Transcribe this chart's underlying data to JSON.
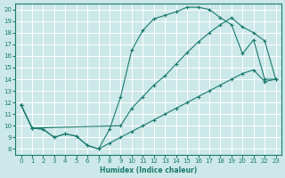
{
  "bg_color": "#cce8e8",
  "line_color": "#1a7a6e",
  "grid_color": "#ffffff",
  "xlabel": "Humidex (Indice chaleur)",
  "xlim": [
    -0.5,
    23.5
  ],
  "ylim": [
    7.5,
    20.5
  ],
  "xticks": [
    0,
    1,
    2,
    3,
    4,
    5,
    6,
    7,
    8,
    9,
    10,
    11,
    12,
    13,
    14,
    15,
    16,
    17,
    18,
    19,
    20,
    21,
    22,
    23
  ],
  "yticks": [
    8,
    9,
    10,
    11,
    12,
    13,
    14,
    15,
    16,
    17,
    18,
    19,
    20
  ],
  "line1_x": [
    0,
    1,
    2,
    3,
    4,
    5,
    6,
    7,
    8,
    9,
    10,
    11,
    12,
    13,
    14,
    15,
    16,
    17,
    18,
    19,
    20,
    21,
    22,
    23
  ],
  "line1_y": [
    11.8,
    9.8,
    9.7,
    9.0,
    9.3,
    9.1,
    8.3,
    8.0,
    9.7,
    12.5,
    16.5,
    18.2,
    19.2,
    19.5,
    19.8,
    20.2,
    20.2,
    20.0,
    19.3,
    18.7,
    16.2,
    17.4,
    14.0,
    14.0
  ],
  "line2_x": [
    0,
    1,
    9,
    10,
    11,
    12,
    13,
    14,
    15,
    16,
    17,
    18,
    19,
    20,
    21,
    22,
    23
  ],
  "line2_y": [
    11.8,
    9.8,
    10.0,
    11.5,
    12.5,
    13.5,
    14.3,
    15.3,
    16.3,
    17.2,
    18.0,
    18.7,
    19.3,
    18.5,
    18.0,
    17.3,
    14.0
  ],
  "line3_x": [
    0,
    1,
    2,
    3,
    4,
    5,
    6,
    7,
    8,
    9,
    10,
    11,
    12,
    13,
    14,
    15,
    16,
    17,
    18,
    19,
    20,
    21,
    22,
    23
  ],
  "line3_y": [
    11.8,
    9.8,
    9.7,
    9.0,
    9.3,
    9.1,
    8.3,
    8.0,
    8.5,
    9.0,
    9.5,
    10.0,
    10.5,
    11.0,
    11.5,
    12.0,
    12.5,
    13.0,
    13.5,
    14.0,
    14.5,
    14.8,
    13.8,
    14.0
  ]
}
